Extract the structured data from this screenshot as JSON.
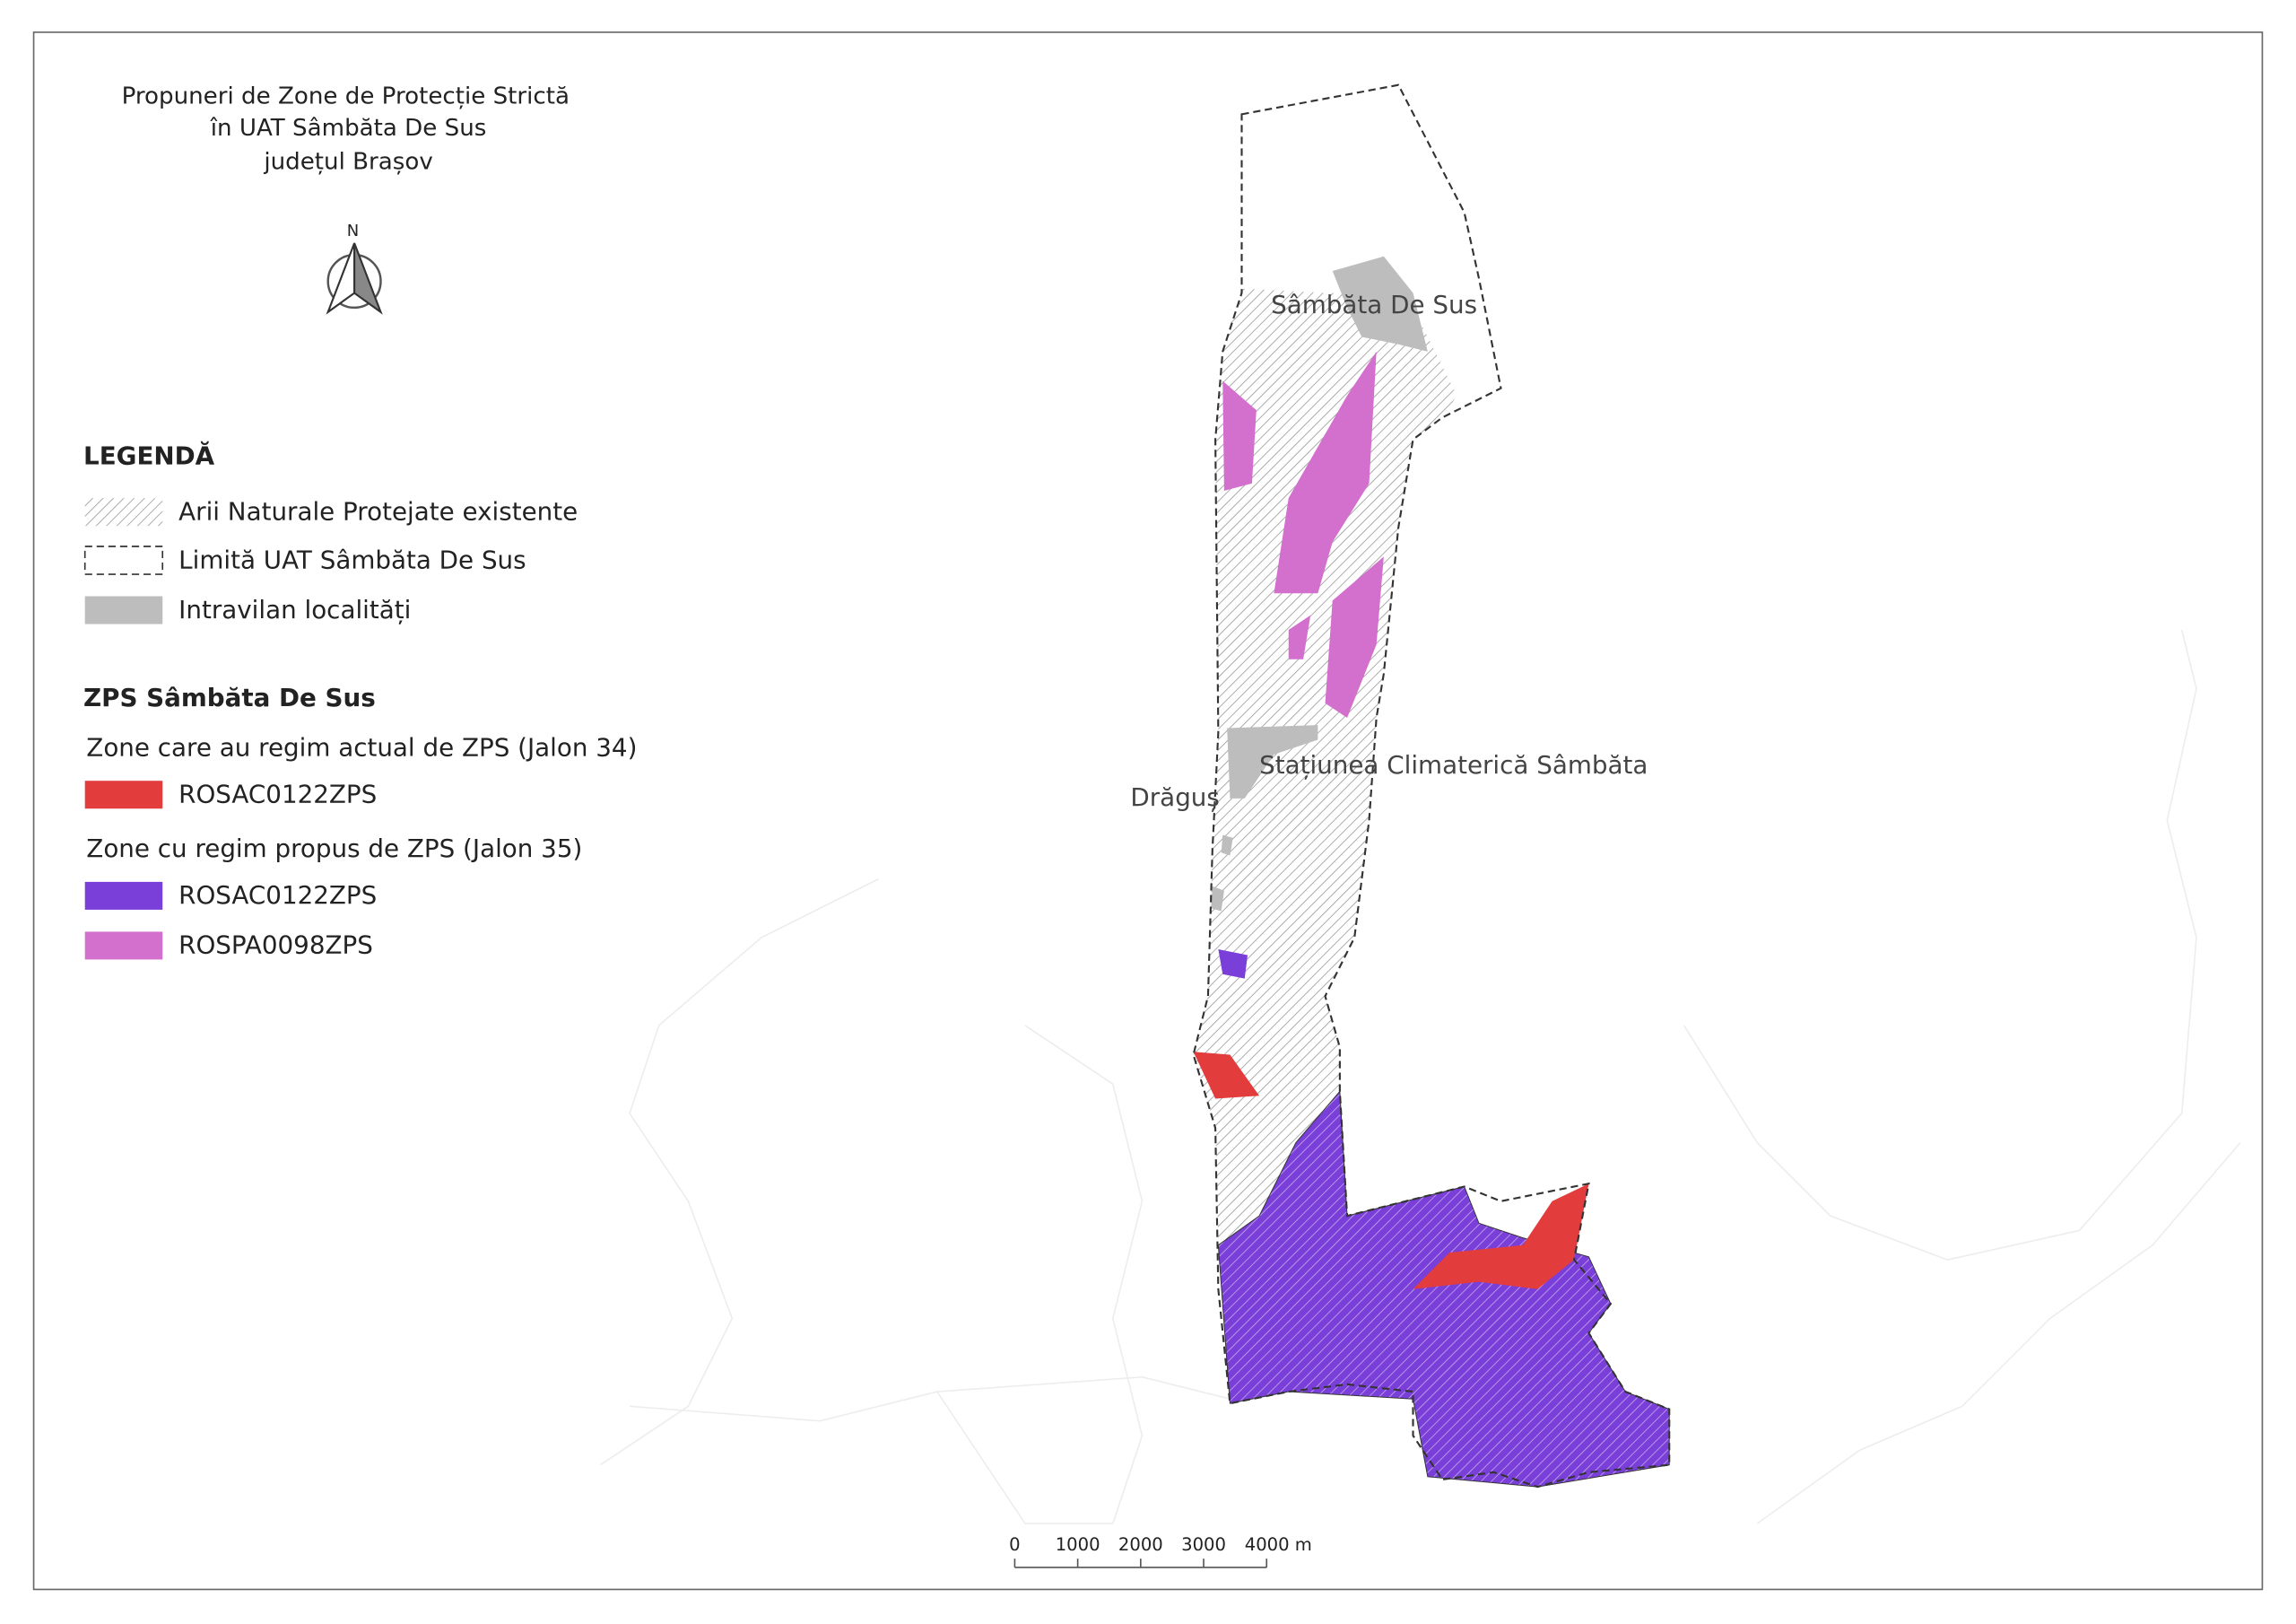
{
  "title": [
    "Propuneri de Zone de Protecție Strictă",
    "în UAT Sâmbăta De Sus",
    "județul Brașov"
  ],
  "north_arrow": "N",
  "legend": {
    "title": "LEGENDĂ",
    "items": [
      "Arii Naturale Protejate existente",
      "Limită UAT Sâmbăta De Sus",
      "Intravilan localități"
    ]
  },
  "zps": {
    "title": "ZPS Sâmbăta De Sus",
    "groups": [
      {
        "heading": "Zone care au regim actual de ZPS (Jalon 34)",
        "items": [
          "ROSAC0122ZPS"
        ]
      },
      {
        "heading": "Zone cu regim propus de ZPS (Jalon 35)",
        "items": [
          "ROSAC0122ZPS",
          "ROSPA0098ZPS"
        ]
      }
    ]
  },
  "places": [
    "Sâmbăta De Sus",
    "Stațiunea Climaterică Sâmbăta",
    "Drăguș"
  ],
  "scale_bar": [
    "0",
    "1000",
    "2000",
    "3000",
    "4000 m"
  ]
}
